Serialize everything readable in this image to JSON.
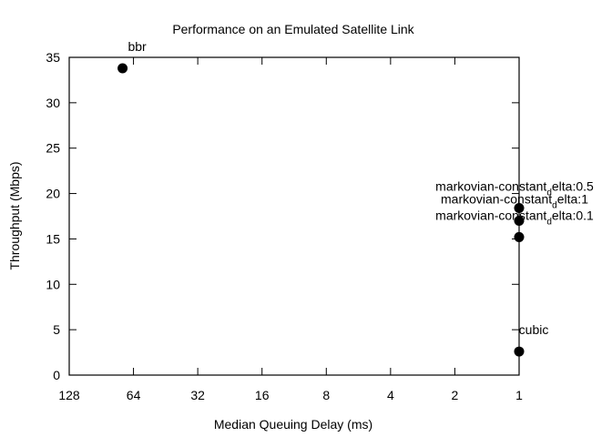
{
  "chart_data": {
    "type": "scatter",
    "title": "Performance on an Emulated Satellite Link",
    "xlabel": "Median Queuing Delay (ms)",
    "ylabel": "Throughput (Mbps)",
    "x_scale": "log2",
    "x_reversed": true,
    "xlim": [
      128,
      1
    ],
    "ylim": [
      0,
      35
    ],
    "x_ticks": [
      "128",
      "64",
      "32",
      "16",
      "8",
      "4",
      "2",
      "1"
    ],
    "x_tick_values": [
      128,
      64,
      32,
      16,
      8,
      4,
      2,
      1
    ],
    "y_ticks": [
      "0",
      "5",
      "10",
      "15",
      "20",
      "25",
      "30",
      "35"
    ],
    "y_tick_values": [
      0,
      5,
      10,
      15,
      20,
      25,
      30,
      35
    ],
    "grid": false,
    "point_color": "#000000",
    "points": [
      {
        "label": "bbr",
        "x": 72,
        "y": 33.8
      },
      {
        "label": "markovian-constant_delta:0.5",
        "label_main": "markovian-constant",
        "label_sub": "d",
        "label_rest": "elta:0.5",
        "x": 1,
        "y": 18.4
      },
      {
        "label": "markovian-constant_delta:1",
        "label_main": "markovian-constant",
        "label_sub": "d",
        "label_rest": "elta:1",
        "x": 1,
        "y": 17.0
      },
      {
        "label": "markovian-constant_delta:0.1",
        "label_main": "markovian-constant",
        "label_sub": "d",
        "label_rest": "elta:0.1",
        "x": 1,
        "y": 15.2
      },
      {
        "label": "cubic",
        "x": 1,
        "y": 2.6
      }
    ]
  }
}
